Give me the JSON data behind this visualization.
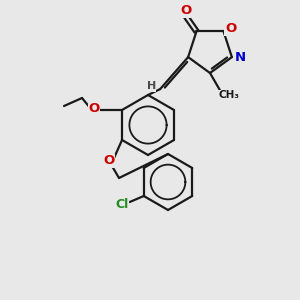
{
  "bg_color": "#e8e8e8",
  "bond_color": "#1a1a1a",
  "atom_colors": {
    "O": "#cc0000",
    "N": "#0000cc",
    "Cl": "#228b22",
    "C": "#1a1a1a",
    "H": "#4a4a4a"
  },
  "figsize": [
    3.0,
    3.0
  ],
  "dpi": 100
}
